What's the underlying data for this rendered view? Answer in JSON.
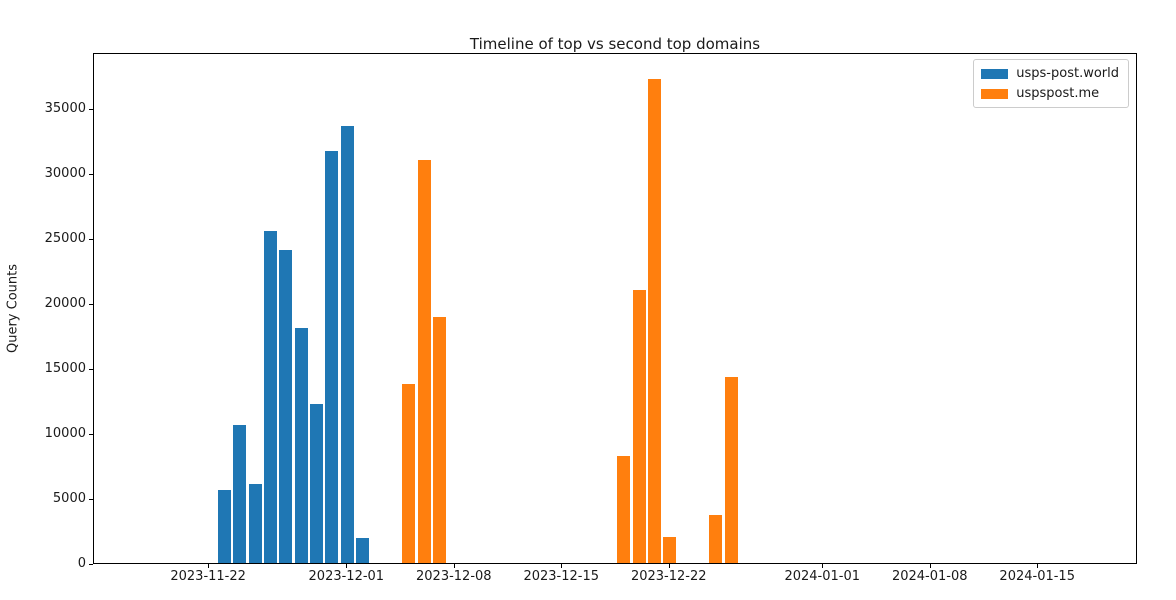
{
  "title": "Timeline of top vs second top domains",
  "ylabel": "Query Counts",
  "legend": {
    "position": "upper right",
    "items": [
      {
        "label": "usps-post.world",
        "color": "#1f77b4"
      },
      {
        "label": "uspspost.me",
        "color": "#ff7f0e"
      }
    ]
  },
  "chart_data": {
    "type": "bar",
    "title": "Timeline of top vs second top domains",
    "xlabel": "",
    "ylabel": "Query Counts",
    "grid": false,
    "legend_position": "upper right",
    "ylim": [
      0,
      39300
    ],
    "x_range": [
      "2023-11-15",
      "2024-01-21"
    ],
    "yticks": [
      0,
      5000,
      10000,
      15000,
      20000,
      25000,
      30000,
      35000
    ],
    "xticks": [
      "2023-11-22",
      "2023-12-01",
      "2023-12-08",
      "2023-12-15",
      "2023-12-22",
      "2024-01-01",
      "2024-01-08",
      "2024-01-15"
    ],
    "series": [
      {
        "name": "usps-post.world",
        "color": "#1f77b4",
        "points": [
          {
            "date": "2023-11-23",
            "value": 5600
          },
          {
            "date": "2023-11-24",
            "value": 10600
          },
          {
            "date": "2023-11-25",
            "value": 6100
          },
          {
            "date": "2023-11-26",
            "value": 25500
          },
          {
            "date": "2023-11-27",
            "value": 24100
          },
          {
            "date": "2023-11-28",
            "value": 18100
          },
          {
            "date": "2023-11-29",
            "value": 12200
          },
          {
            "date": "2023-11-30",
            "value": 31700
          },
          {
            "date": "2023-12-01",
            "value": 33600
          },
          {
            "date": "2023-12-02",
            "value": 1900
          }
        ]
      },
      {
        "name": "uspspost.me",
        "color": "#ff7f0e",
        "points": [
          {
            "date": "2023-12-05",
            "value": 13800
          },
          {
            "date": "2023-12-06",
            "value": 31000
          },
          {
            "date": "2023-12-07",
            "value": 18900
          },
          {
            "date": "2023-12-19",
            "value": 8200
          },
          {
            "date": "2023-12-20",
            "value": 21000
          },
          {
            "date": "2023-12-21",
            "value": 37200
          },
          {
            "date": "2023-12-22",
            "value": 2000
          },
          {
            "date": "2023-12-25",
            "value": 3700
          },
          {
            "date": "2023-12-26",
            "value": 14300
          }
        ]
      }
    ]
  }
}
